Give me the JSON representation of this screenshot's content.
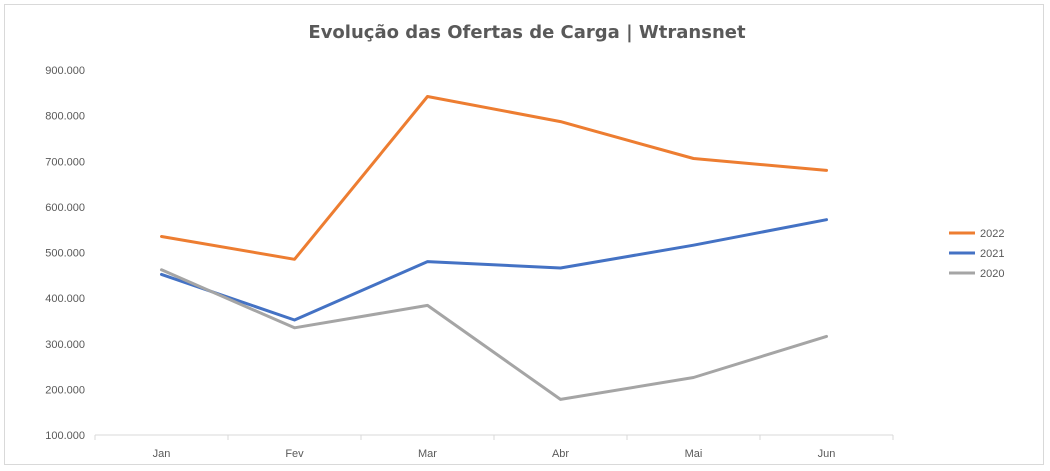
{
  "chart_data": {
    "type": "line",
    "title": "Evolução das Ofertas de Carga | Wtransnet",
    "xlabel": "",
    "ylabel": "",
    "categories": [
      "Jan",
      "Fev",
      "Mar",
      "Abr",
      "Mai",
      "Jun"
    ],
    "ylim": [
      100000,
      900000
    ],
    "yticks": [
      100000,
      200000,
      300000,
      400000,
      500000,
      600000,
      700000,
      800000,
      900000
    ],
    "ytick_labels": [
      "100.000",
      "200.000",
      "300.000",
      "400.000",
      "500.000",
      "600.000",
      "700.000",
      "800.000",
      "900.000"
    ],
    "grid": false,
    "legend_position": "right",
    "series": [
      {
        "name": "2022",
        "color": "#ED7D31",
        "values": [
          535000,
          485000,
          842000,
          787000,
          706000,
          680000
        ]
      },
      {
        "name": "2021",
        "color": "#4472C4",
        "values": [
          452000,
          352000,
          480000,
          466000,
          516000,
          572000
        ]
      },
      {
        "name": "2020",
        "color": "#A5A5A5",
        "values": [
          462000,
          335000,
          384000,
          178000,
          226000,
          316000
        ]
      }
    ]
  }
}
